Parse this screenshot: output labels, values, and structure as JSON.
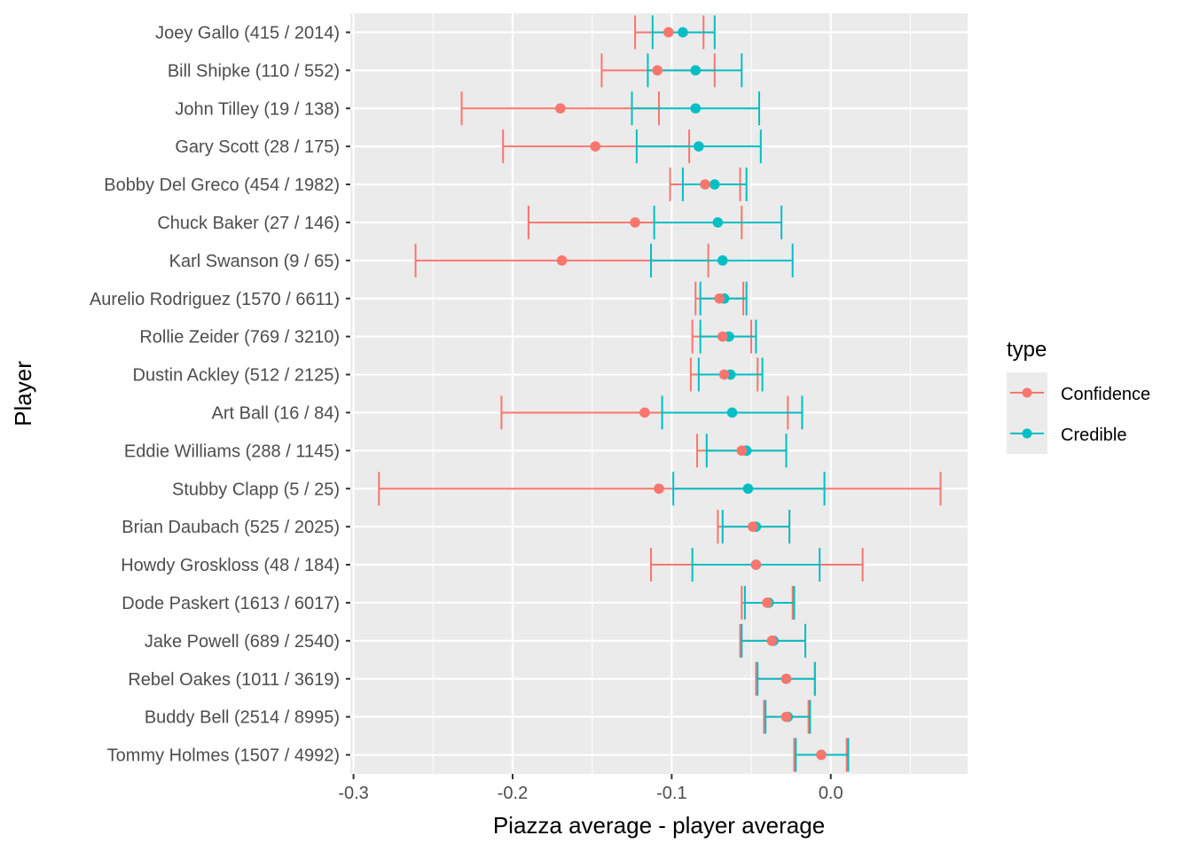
{
  "chart_data": {
    "type": "errorbar",
    "title": "",
    "xlabel": "Piazza average - player average",
    "ylabel": "Player",
    "xlim": [
      -0.302,
      0.086
    ],
    "xticks": [
      -0.3,
      -0.2,
      -0.1,
      0.0
    ],
    "xtick_labels": [
      "-0.3",
      "-0.2",
      "-0.1",
      "0.0"
    ],
    "grid": true,
    "legend": {
      "title": "type",
      "position": "right",
      "entries": [
        {
          "name": "Confidence",
          "color": "#F8766D"
        },
        {
          "name": "Credible",
          "color": "#00BFC4"
        }
      ]
    },
    "categories": [
      "Joey Gallo (415 / 2014)",
      "Bill Shipke (110 / 552)",
      "John Tilley (19 / 138)",
      "Gary Scott (28 / 175)",
      "Bobby Del Greco (454 / 1982)",
      "Chuck Baker (27 / 146)",
      "Karl Swanson (9 / 65)",
      "Aurelio Rodriguez (1570 / 6611)",
      "Rollie Zeider (769 / 3210)",
      "Dustin Ackley (512 / 2125)",
      "Art Ball (16 / 84)",
      "Eddie Williams (288 / 1145)",
      "Stubby Clapp (5 / 25)",
      "Brian Daubach (525 / 2025)",
      "Howdy Groskloss (48 / 184)",
      "Dode Paskert (1613 / 6017)",
      "Jake Powell (689 / 2540)",
      "Rebel Oakes (1011 / 3619)",
      "Buddy Bell (2514 / 8995)",
      "Tommy Holmes (1507 / 4992)"
    ],
    "series": [
      {
        "name": "Confidence",
        "color": "#F8766D",
        "estimate": [
          -0.102,
          -0.109,
          -0.17,
          -0.148,
          -0.079,
          -0.123,
          -0.169,
          -0.07,
          -0.068,
          -0.067,
          -0.117,
          -0.056,
          -0.108,
          -0.049,
          -0.047,
          -0.04,
          -0.037,
          -0.028,
          -0.028,
          -0.006
        ],
        "low": [
          -0.123,
          -0.144,
          -0.232,
          -0.206,
          -0.101,
          -0.19,
          -0.261,
          -0.085,
          -0.087,
          -0.088,
          -0.207,
          -0.084,
          -0.284,
          -0.071,
          -0.113,
          -0.056,
          -0.057,
          -0.047,
          -0.042,
          -0.023
        ],
        "high": [
          -0.08,
          -0.073,
          -0.108,
          -0.089,
          -0.057,
          -0.056,
          -0.077,
          -0.055,
          -0.05,
          -0.046,
          -0.027,
          -0.028,
          0.069,
          -0.026,
          0.02,
          -0.024,
          -0.016,
          -0.01,
          -0.014,
          0.01
        ]
      },
      {
        "name": "Credible",
        "color": "#00BFC4",
        "estimate": [
          -0.093,
          -0.085,
          -0.085,
          -0.083,
          -0.073,
          -0.071,
          -0.068,
          -0.067,
          -0.064,
          -0.063,
          -0.062,
          -0.053,
          -0.052,
          -0.047,
          -0.047,
          -0.039,
          -0.036,
          -0.028,
          -0.027,
          -0.006
        ],
        "low": [
          -0.112,
          -0.115,
          -0.125,
          -0.122,
          -0.093,
          -0.111,
          -0.113,
          -0.082,
          -0.082,
          -0.083,
          -0.106,
          -0.078,
          -0.099,
          -0.068,
          -0.087,
          -0.054,
          -0.056,
          -0.046,
          -0.041,
          -0.022
        ],
        "high": [
          -0.073,
          -0.056,
          -0.045,
          -0.044,
          -0.053,
          -0.031,
          -0.024,
          -0.053,
          -0.047,
          -0.043,
          -0.018,
          -0.028,
          -0.004,
          -0.026,
          -0.007,
          -0.023,
          -0.016,
          -0.01,
          -0.013,
          0.011
        ]
      }
    ]
  }
}
